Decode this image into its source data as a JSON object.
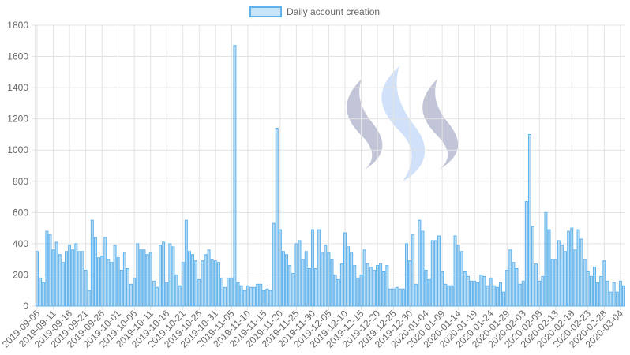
{
  "chart_data": {
    "type": "bar",
    "legend": {
      "label": "Daily account creation",
      "placement": "top-center"
    },
    "ylim": [
      0,
      1800
    ],
    "yticks": [
      0,
      200,
      400,
      600,
      800,
      1000,
      1200,
      1400,
      1600,
      1800
    ],
    "grid": true,
    "x_tick_labels": [
      "2019-09-06",
      "2019-09-11",
      "2019-09-16",
      "2019-09-21",
      "2019-09-26",
      "2019-10-01",
      "2019-10-06",
      "2019-10-11",
      "2019-10-16",
      "2019-10-21",
      "2019-10-26",
      "2019-10-31",
      "2019-11-05",
      "2019-11-10",
      "2019-11-15",
      "2019-11-20",
      "2019-11-25",
      "2019-11-30",
      "2019-12-05",
      "2019-12-10",
      "2019-12-15",
      "2019-12-20",
      "2019-12-25",
      "2019-12-30",
      "2020-01-04",
      "2020-01-09",
      "2020-01-14",
      "2020-01-19",
      "2020-01-24",
      "2020-01-29",
      "2020-02-03",
      "2020-02-08",
      "2020-02-13",
      "2020-02-18",
      "2020-02-23",
      "2020-02-28",
      "2020-03-04"
    ],
    "series": [
      {
        "name": "Daily account creation",
        "color": "#5fb2ec",
        "values": [
          350,
          180,
          150,
          480,
          460,
          360,
          410,
          330,
          280,
          350,
          390,
          360,
          400,
          350,
          350,
          230,
          100,
          550,
          440,
          310,
          320,
          440,
          300,
          280,
          390,
          310,
          230,
          340,
          240,
          140,
          180,
          400,
          360,
          360,
          330,
          340,
          160,
          120,
          390,
          410,
          150,
          400,
          380,
          200,
          130,
          280,
          550,
          350,
          330,
          290,
          170,
          290,
          330,
          360,
          300,
          290,
          280,
          180,
          120,
          180,
          180,
          1670,
          150,
          130,
          100,
          130,
          120,
          120,
          140,
          140,
          100,
          110,
          100,
          530,
          1140,
          490,
          350,
          330,
          260,
          210,
          400,
          420,
          300,
          350,
          240,
          490,
          240,
          490,
          340,
          390,
          340,
          300,
          200,
          170,
          270,
          470,
          380,
          340,
          260,
          180,
          200,
          360,
          270,
          250,
          230,
          260,
          270,
          220,
          260,
          110,
          110,
          120,
          110,
          110,
          400,
          290,
          460,
          140,
          550,
          480,
          230,
          170,
          420,
          420,
          450,
          220,
          140,
          130,
          130,
          450,
          390,
          350,
          220,
          190,
          160,
          160,
          150,
          200,
          190,
          130,
          180,
          130,
          120,
          150,
          90,
          230,
          360,
          280,
          240,
          140,
          160,
          670,
          1100,
          510,
          270,
          160,
          190,
          600,
          490,
          300,
          300,
          420,
          390,
          350,
          480,
          500,
          360,
          490,
          430,
          300,
          220,
          190,
          250,
          150,
          190,
          290,
          160,
          90,
          150,
          90,
          160,
          130
        ]
      }
    ]
  },
  "watermark": {
    "logo": "steem-logo",
    "colors": [
      "#9a9dbd",
      "#a9c8f4"
    ]
  }
}
